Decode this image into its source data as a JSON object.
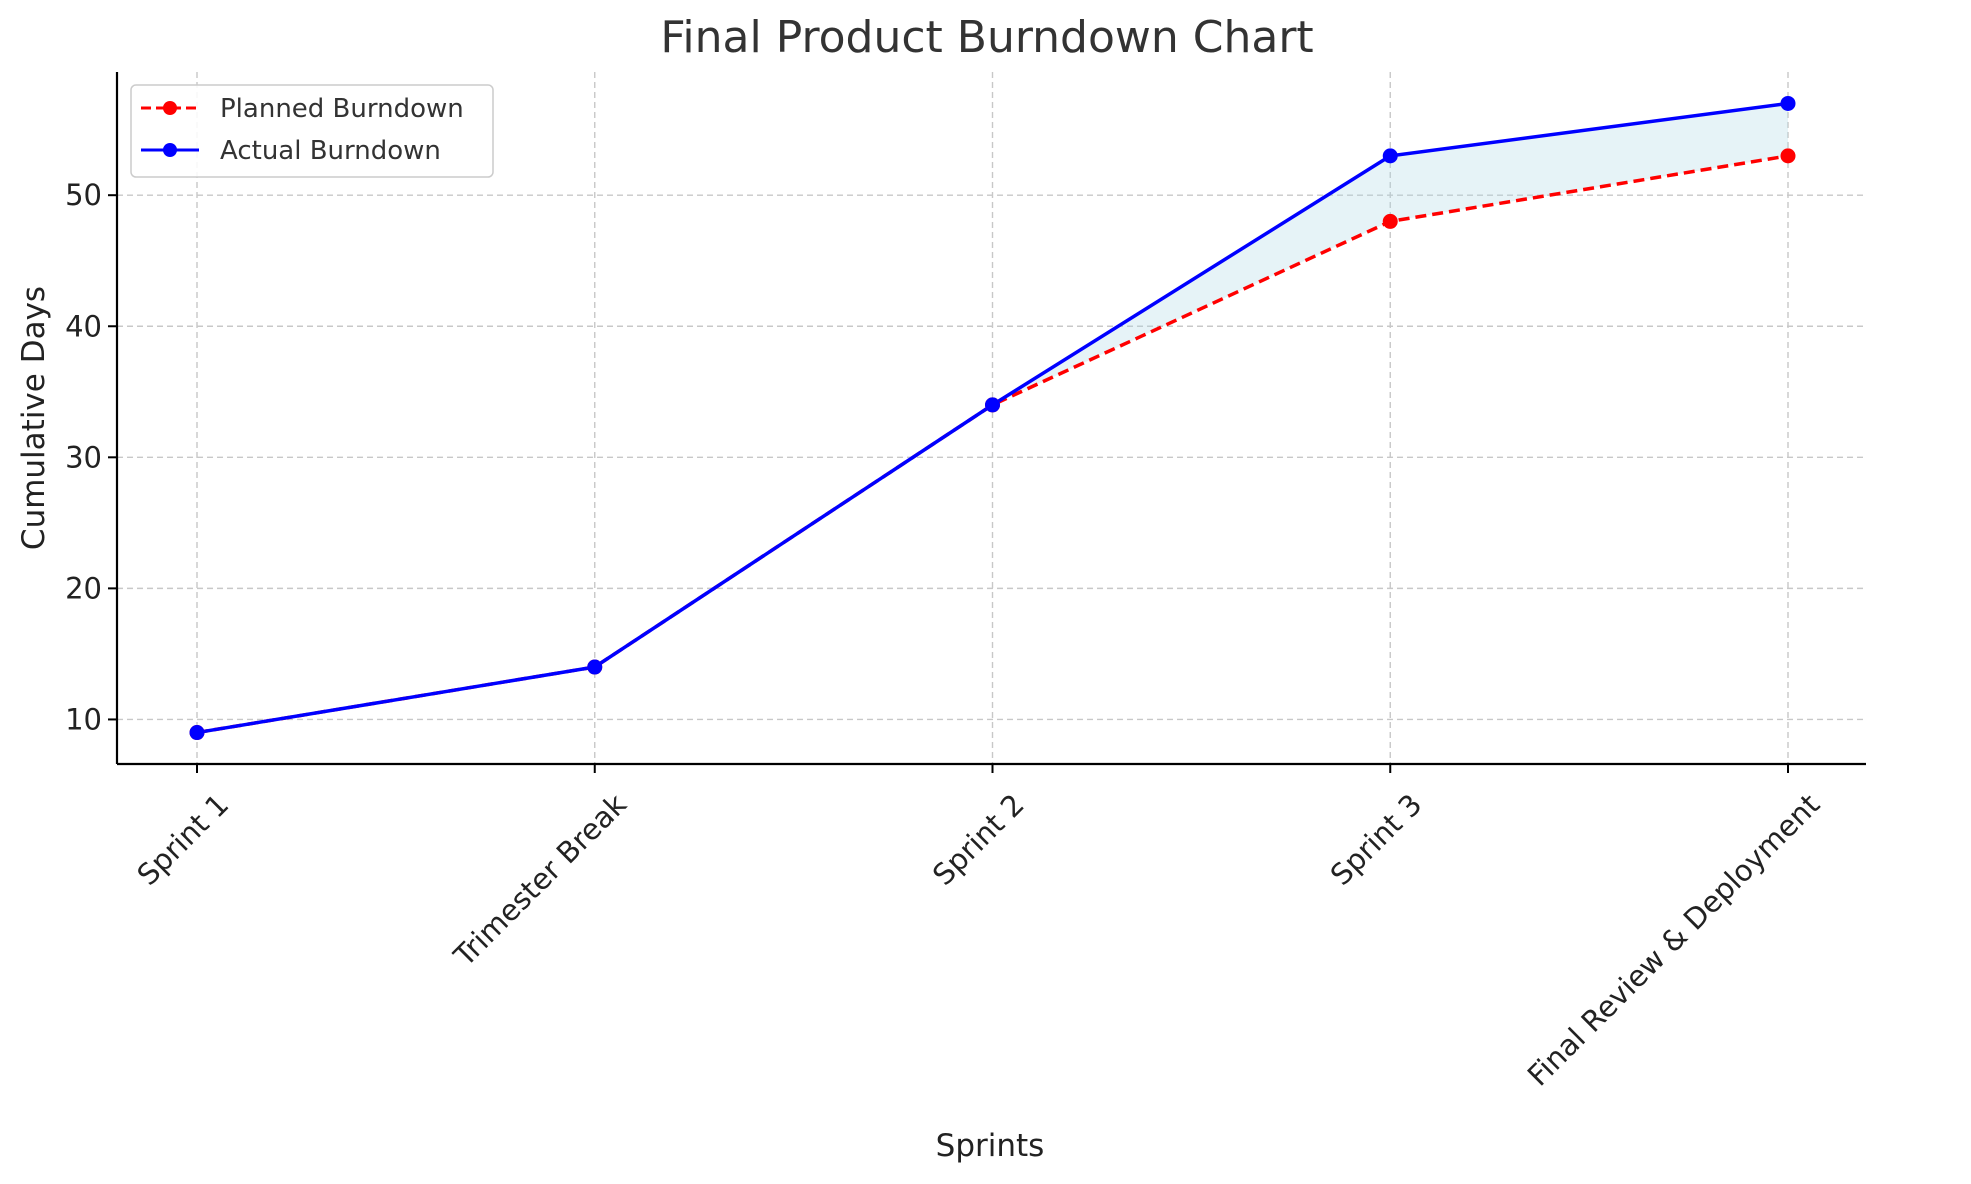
{
  "chart_data": {
    "type": "line",
    "title": "Final Product Burndown Chart",
    "xlabel": "Sprints",
    "ylabel": "Cumulative Days",
    "categories": [
      "Sprint 1",
      "Trimester Break",
      "Sprint 2",
      "Sprint 3",
      "Final Review & Deployment"
    ],
    "ylim": [
      6.6,
      59.4
    ],
    "yticks": [
      10,
      20,
      30,
      40,
      50
    ],
    "grid": true,
    "legend_position": "top-left",
    "fill_between_series": {
      "from": "Planned Burndown",
      "to": "Actual Burndown",
      "color": "#add8e6",
      "opacity": 0.3
    },
    "series": [
      {
        "name": "Planned Burndown",
        "values": [
          9,
          14,
          34,
          48,
          53
        ],
        "color": "#ff0000",
        "line_style": "dashed",
        "marker": "circle"
      },
      {
        "name": "Actual Burndown",
        "values": [
          9,
          14,
          34,
          53,
          57
        ],
        "color": "#0000ff",
        "line_style": "solid",
        "marker": "circle"
      }
    ]
  }
}
